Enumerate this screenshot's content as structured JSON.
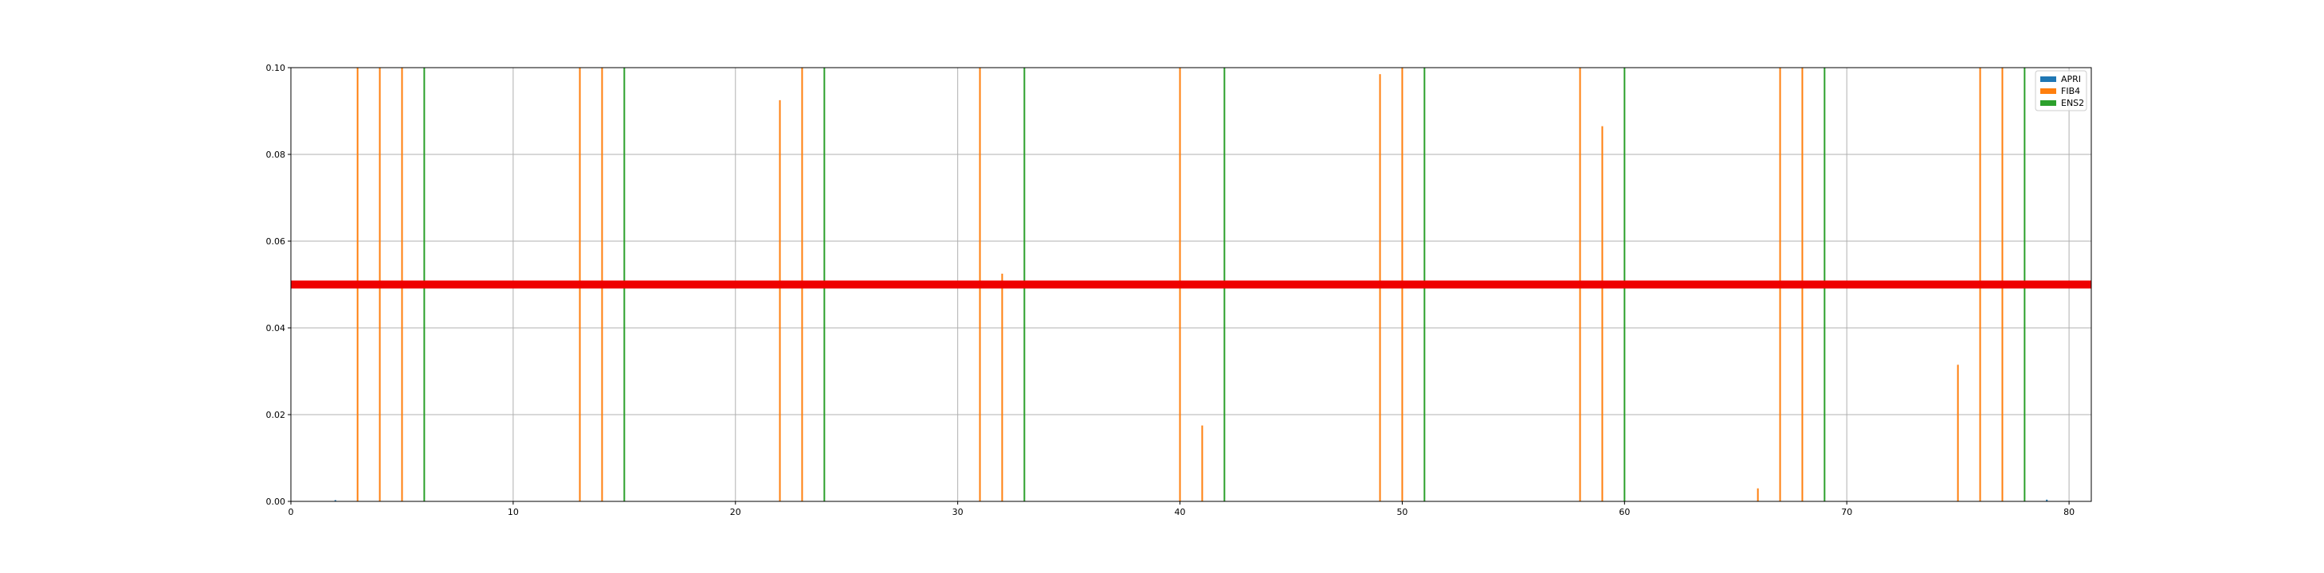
{
  "chart_data": {
    "type": "bar",
    "xlim": [
      0,
      81
    ],
    "ylim": [
      0,
      0.1
    ],
    "xticks": [
      0,
      10,
      20,
      30,
      40,
      50,
      60,
      70,
      80
    ],
    "yticks": [
      0.0,
      0.02,
      0.04,
      0.06,
      0.08,
      0.1
    ],
    "xtick_labels": [
      "0",
      "10",
      "20",
      "30",
      "40",
      "50",
      "60",
      "70",
      "80"
    ],
    "ytick_labels": [
      "0.00",
      "0.02",
      "0.04",
      "0.06",
      "0.08",
      "0.10"
    ],
    "grid": true,
    "legend_position": "top-right",
    "series": [
      {
        "name": "APRI",
        "color": "#1f77b4",
        "points": [
          [
            2,
            0.0003
          ],
          [
            79,
            0.0004
          ]
        ]
      },
      {
        "name": "FIB4",
        "color": "#ff7f0e",
        "points": [
          [
            3,
            0.1
          ],
          [
            4,
            0.1
          ],
          [
            5,
            0.1
          ],
          [
            13,
            0.1
          ],
          [
            14,
            0.1
          ],
          [
            22,
            0.0925
          ],
          [
            23,
            0.1
          ],
          [
            31,
            0.1
          ],
          [
            32,
            0.0525
          ],
          [
            40,
            0.1
          ],
          [
            41,
            0.0175
          ],
          [
            49,
            0.0985
          ],
          [
            50,
            0.1
          ],
          [
            58,
            0.1
          ],
          [
            59,
            0.0865
          ],
          [
            66,
            0.003
          ],
          [
            67,
            0.1
          ],
          [
            68,
            0.1
          ],
          [
            75,
            0.0315
          ],
          [
            76,
            0.1
          ],
          [
            77,
            0.1
          ]
        ]
      },
      {
        "name": "ENS2",
        "color": "#2ca02c",
        "points": [
          [
            6,
            0.1
          ],
          [
            15,
            0.1
          ],
          [
            24,
            0.1
          ],
          [
            33,
            0.1
          ],
          [
            42,
            0.1
          ],
          [
            51,
            0.1
          ],
          [
            60,
            0.1
          ],
          [
            69,
            0.1
          ],
          [
            78,
            0.1
          ]
        ]
      }
    ],
    "threshold": {
      "y": 0.05,
      "color": "#ee0000"
    }
  }
}
